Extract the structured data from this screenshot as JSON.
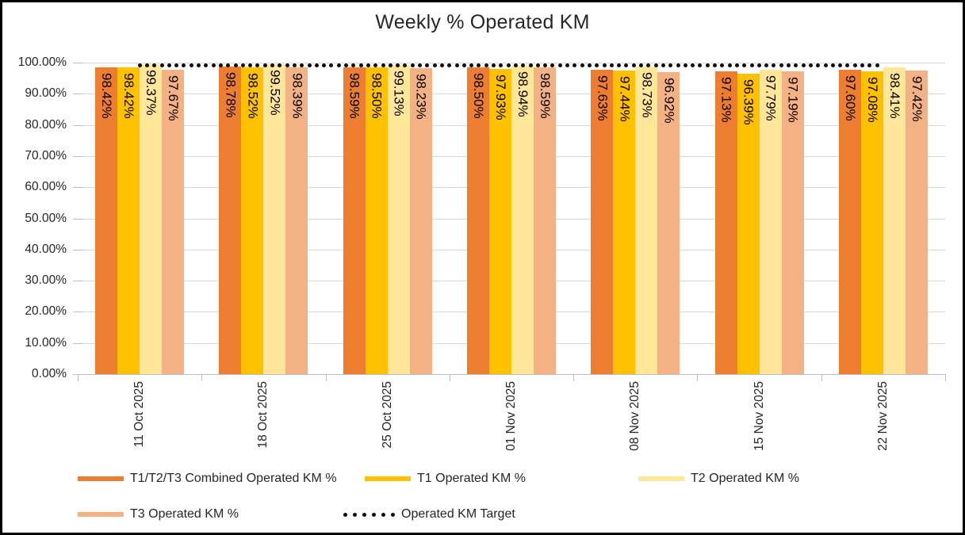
{
  "chart_data": {
    "type": "bar",
    "title": "Weekly % Operated KM",
    "categories": [
      "11 Oct 2025",
      "18 Oct 2025",
      "25 Oct 2025",
      "01 Nov 2025",
      "08 Nov 2025",
      "15 Nov 2025",
      "22 Nov 2025"
    ],
    "series": [
      {
        "name": "T1/T2/T3 Combined Operated KM %",
        "color": "#ED7D31",
        "values": [
          98.42,
          98.78,
          98.59,
          98.5,
          97.63,
          97.13,
          97.6
        ]
      },
      {
        "name": "T1 Operated KM %",
        "color": "#FFC000",
        "values": [
          98.42,
          98.52,
          98.5,
          97.93,
          97.44,
          96.39,
          97.08
        ]
      },
      {
        "name": "T2 Operated KM %",
        "color": "#FFE699",
        "values": [
          99.37,
          99.52,
          99.13,
          98.94,
          98.73,
          97.79,
          98.41
        ]
      },
      {
        "name": "T3 Operated KM %",
        "color": "#F4B183",
        "values": [
          97.67,
          98.39,
          98.23,
          98.59,
          96.92,
          97.19,
          97.42
        ]
      }
    ],
    "target_line": {
      "name": "Operated KM Target",
      "value": 99.0,
      "style": "dotted",
      "color": "#0D0D0D"
    },
    "y_axis": {
      "min": 0,
      "max": 100,
      "step": 10,
      "tick_labels": [
        "0.00%",
        "10.00%",
        "20.00%",
        "30.00%",
        "40.00%",
        "50.00%",
        "60.00%",
        "70.00%",
        "80.00%",
        "90.00%",
        "100.00%"
      ]
    },
    "data_labels_shown": true,
    "data_label_format": "0.00%",
    "grid": true,
    "legend_position": "bottom",
    "colors": {
      "gridline": "#D9D9D9",
      "axis": "#BFBFBF",
      "text": "#262626",
      "data_label_text": "#000000",
      "chart_border": "#000000",
      "background": "#FFFFFF"
    }
  }
}
